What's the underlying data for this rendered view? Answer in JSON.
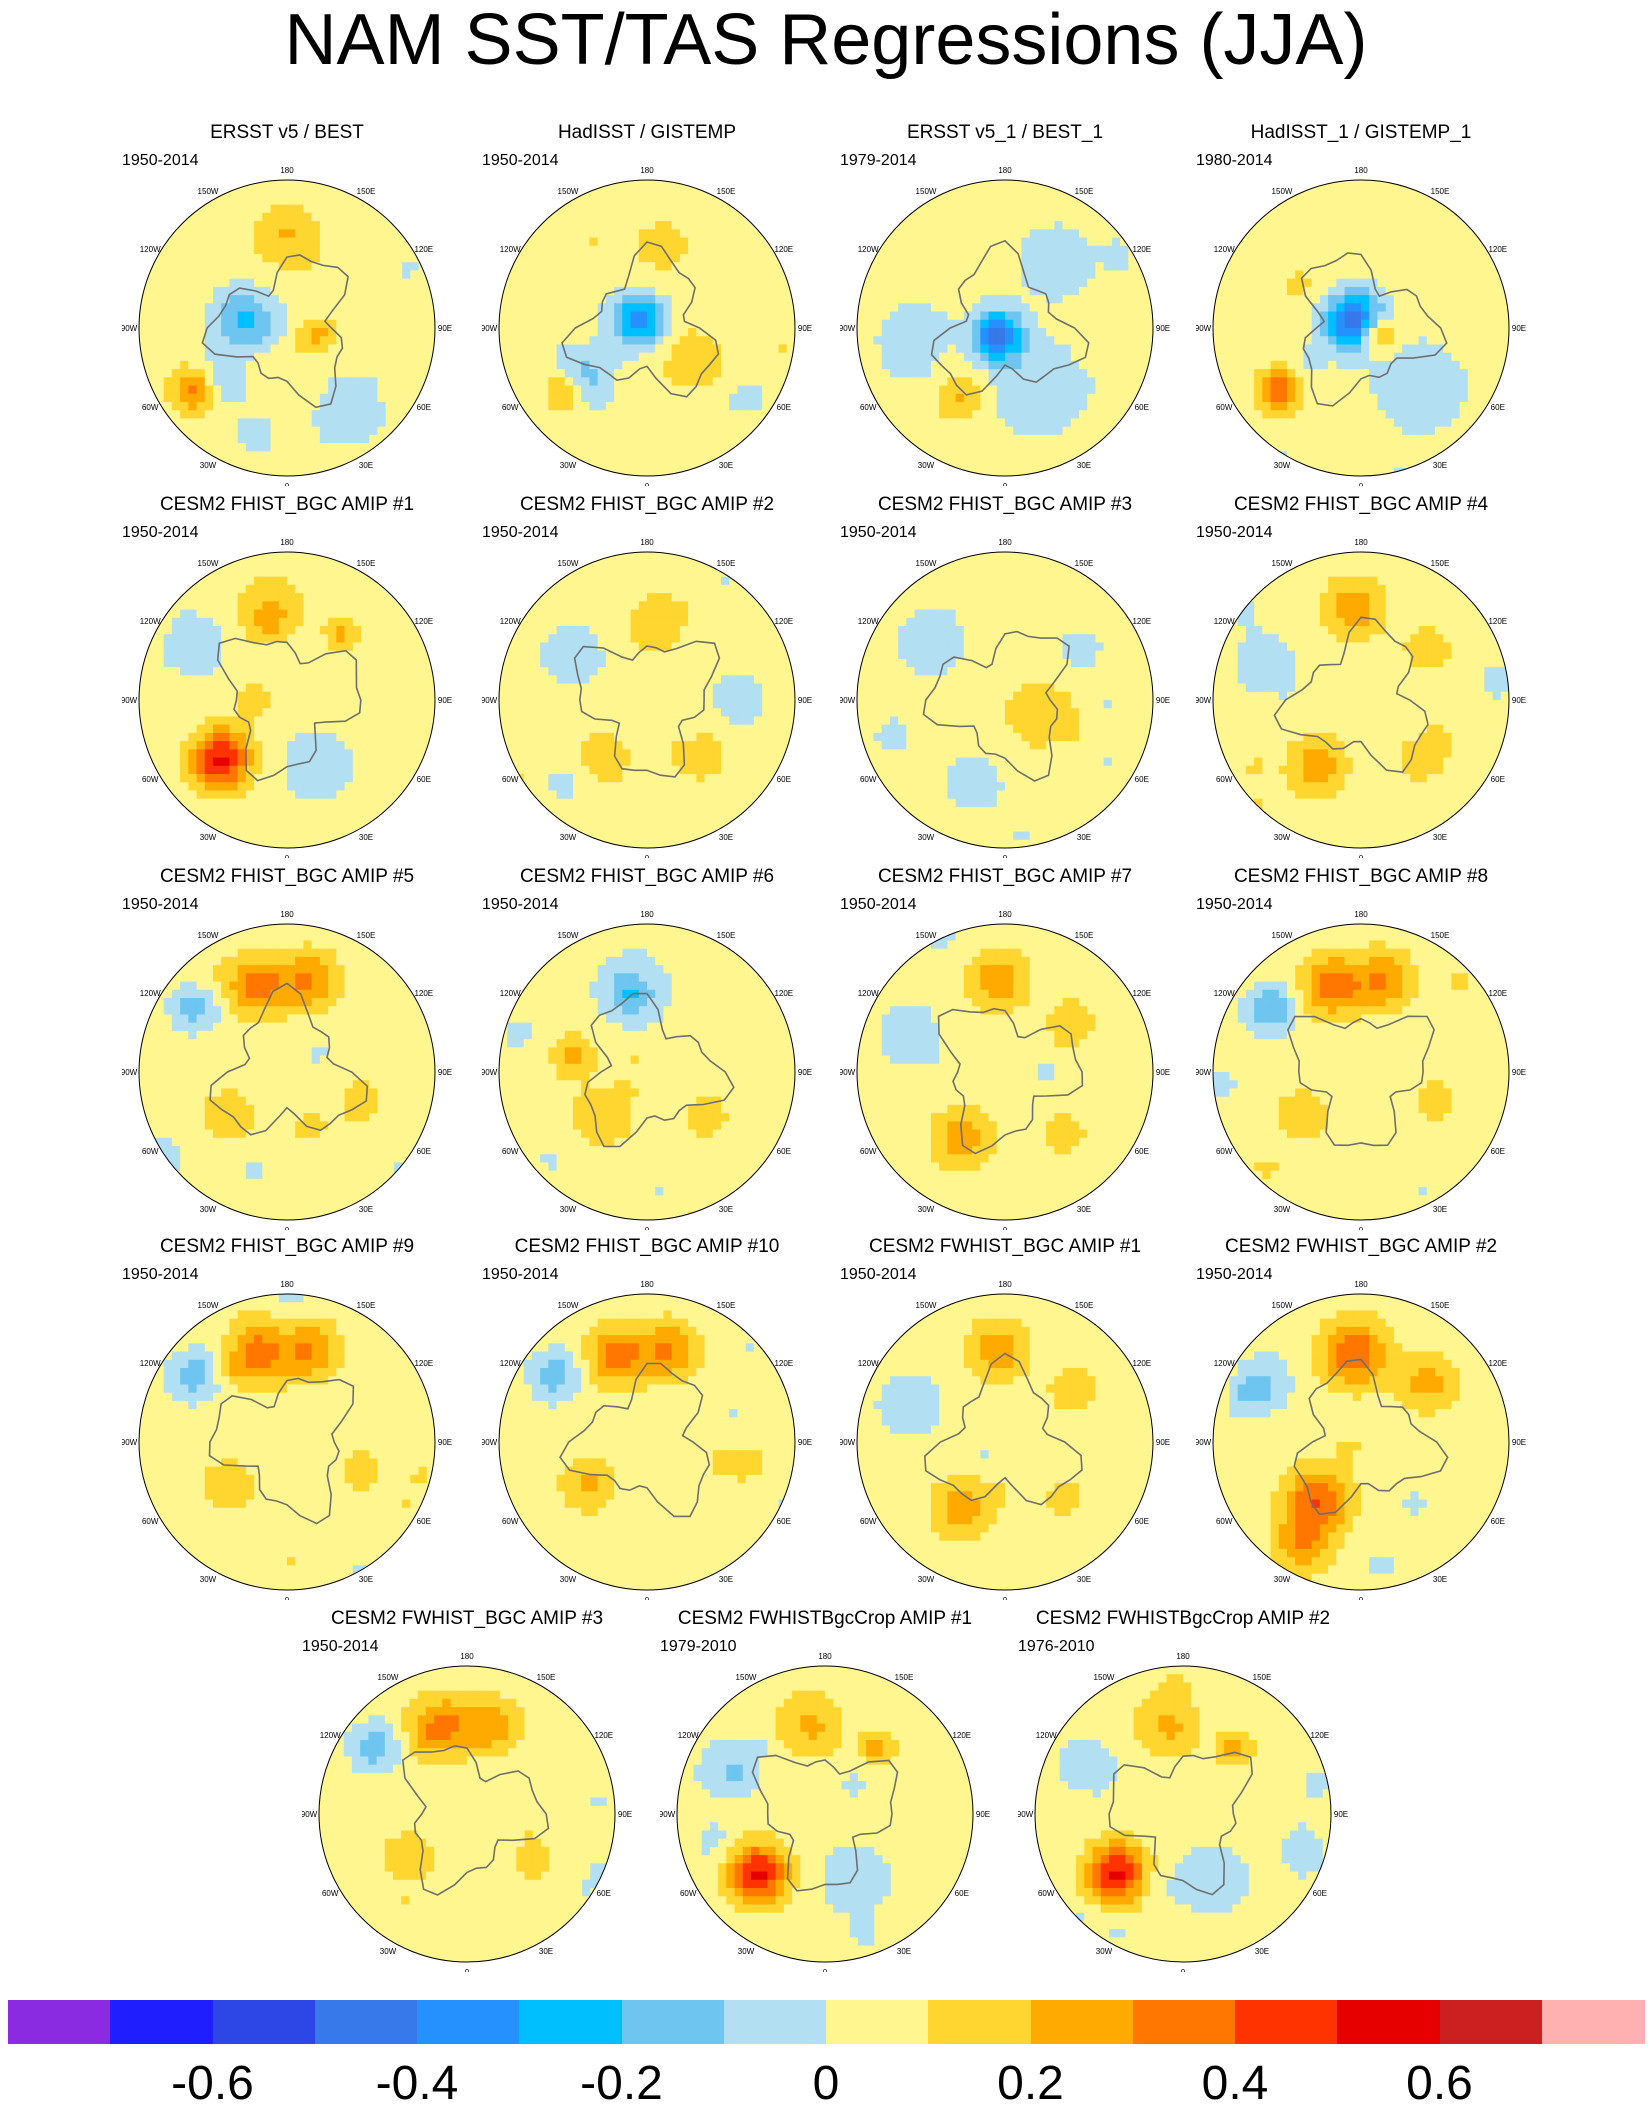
{
  "title": "NAM SST/TAS Regressions (JJA)",
  "panels": [
    {
      "title": "ERSST v5 / BEST",
      "years": "1950-2014",
      "pattern": "obsA",
      "seed": 11
    },
    {
      "title": "HadISST / GISTEMP",
      "years": "1950-2014",
      "pattern": "obsB",
      "seed": 12
    },
    {
      "title": "ERSST v5_1 / BEST_1",
      "years": "1979-2014",
      "pattern": "obsC",
      "seed": 13
    },
    {
      "title": "HadISST_1 / GISTEMP_1",
      "years": "1980-2014",
      "pattern": "obsD",
      "seed": 14
    },
    {
      "title": "CESM2 FHIST_BGC AMIP #1",
      "years": "1950-2014",
      "pattern": "atlHot",
      "seed": 21
    },
    {
      "title": "CESM2 FHIST_BGC AMIP #2",
      "years": "1950-2014",
      "pattern": "mixed",
      "seed": 22
    },
    {
      "title": "CESM2 FHIST_BGC AMIP #3",
      "years": "1950-2014",
      "pattern": "weak",
      "seed": 23
    },
    {
      "title": "CESM2 FHIST_BGC AMIP #4",
      "years": "1950-2014",
      "pattern": "pacAtl",
      "seed": 24
    },
    {
      "title": "CESM2 FHIST_BGC AMIP #5",
      "years": "1950-2014",
      "pattern": "pacBand",
      "seed": 25
    },
    {
      "title": "CESM2 FHIST_BGC AMIP #6",
      "years": "1950-2014",
      "pattern": "pacCool",
      "seed": 26
    },
    {
      "title": "CESM2 FHIST_BGC AMIP #7",
      "years": "1950-2014",
      "pattern": "pacAtl",
      "seed": 27
    },
    {
      "title": "CESM2 FHIST_BGC AMIP #8",
      "years": "1950-2014",
      "pattern": "pacBand",
      "seed": 28
    },
    {
      "title": "CESM2 FHIST_BGC AMIP #9",
      "years": "1950-2014",
      "pattern": "pacBand",
      "seed": 29
    },
    {
      "title": "CESM2 FHIST_BGC AMIP #10",
      "years": "1950-2014",
      "pattern": "pacBand",
      "seed": 30
    },
    {
      "title": "CESM2 FWHIST_BGC AMIP #1",
      "years": "1950-2014",
      "pattern": "pacAtl",
      "seed": 31
    },
    {
      "title": "CESM2 FWHIST_BGC AMIP #2",
      "years": "1950-2014",
      "pattern": "strong",
      "seed": 32
    },
    {
      "title": "CESM2 FWHIST_BGC AMIP #3",
      "years": "1950-2014",
      "pattern": "pacBand",
      "seed": 33
    },
    {
      "title": "CESM2 FWHISTBgcCrop AMIP #1",
      "years": "1979-2010",
      "pattern": "atlHot",
      "seed": 34
    },
    {
      "title": "CESM2 FWHISTBgcCrop AMIP #2",
      "years": "1976-2010",
      "pattern": "atlHot",
      "seed": 35
    }
  ],
  "lon_labels": [
    "180",
    "150E",
    "120E",
    "90E",
    "60E",
    "30E",
    "0",
    "30W",
    "60W",
    "90W",
    "120W",
    "150W"
  ],
  "colorbar": {
    "colors": [
      "#8a2be2",
      "#1e1eff",
      "#2d47e6",
      "#3778ea",
      "#2491ff",
      "#00bfff",
      "#6ec5f0",
      "#b2dff2",
      "#fff68f",
      "#ffd52f",
      "#ffaa00",
      "#ff7700",
      "#ff3300",
      "#e60000",
      "#cc1f1f",
      "#ffb0b0"
    ],
    "ticks": [
      "-0.6",
      "-0.4",
      "-0.2",
      "0",
      "0.2",
      "0.4",
      "0.6"
    ],
    "tick_values": [
      -0.6,
      -0.4,
      -0.2,
      0,
      0.2,
      0.4,
      0.6
    ],
    "min": -0.8,
    "max": 0.8
  }
}
